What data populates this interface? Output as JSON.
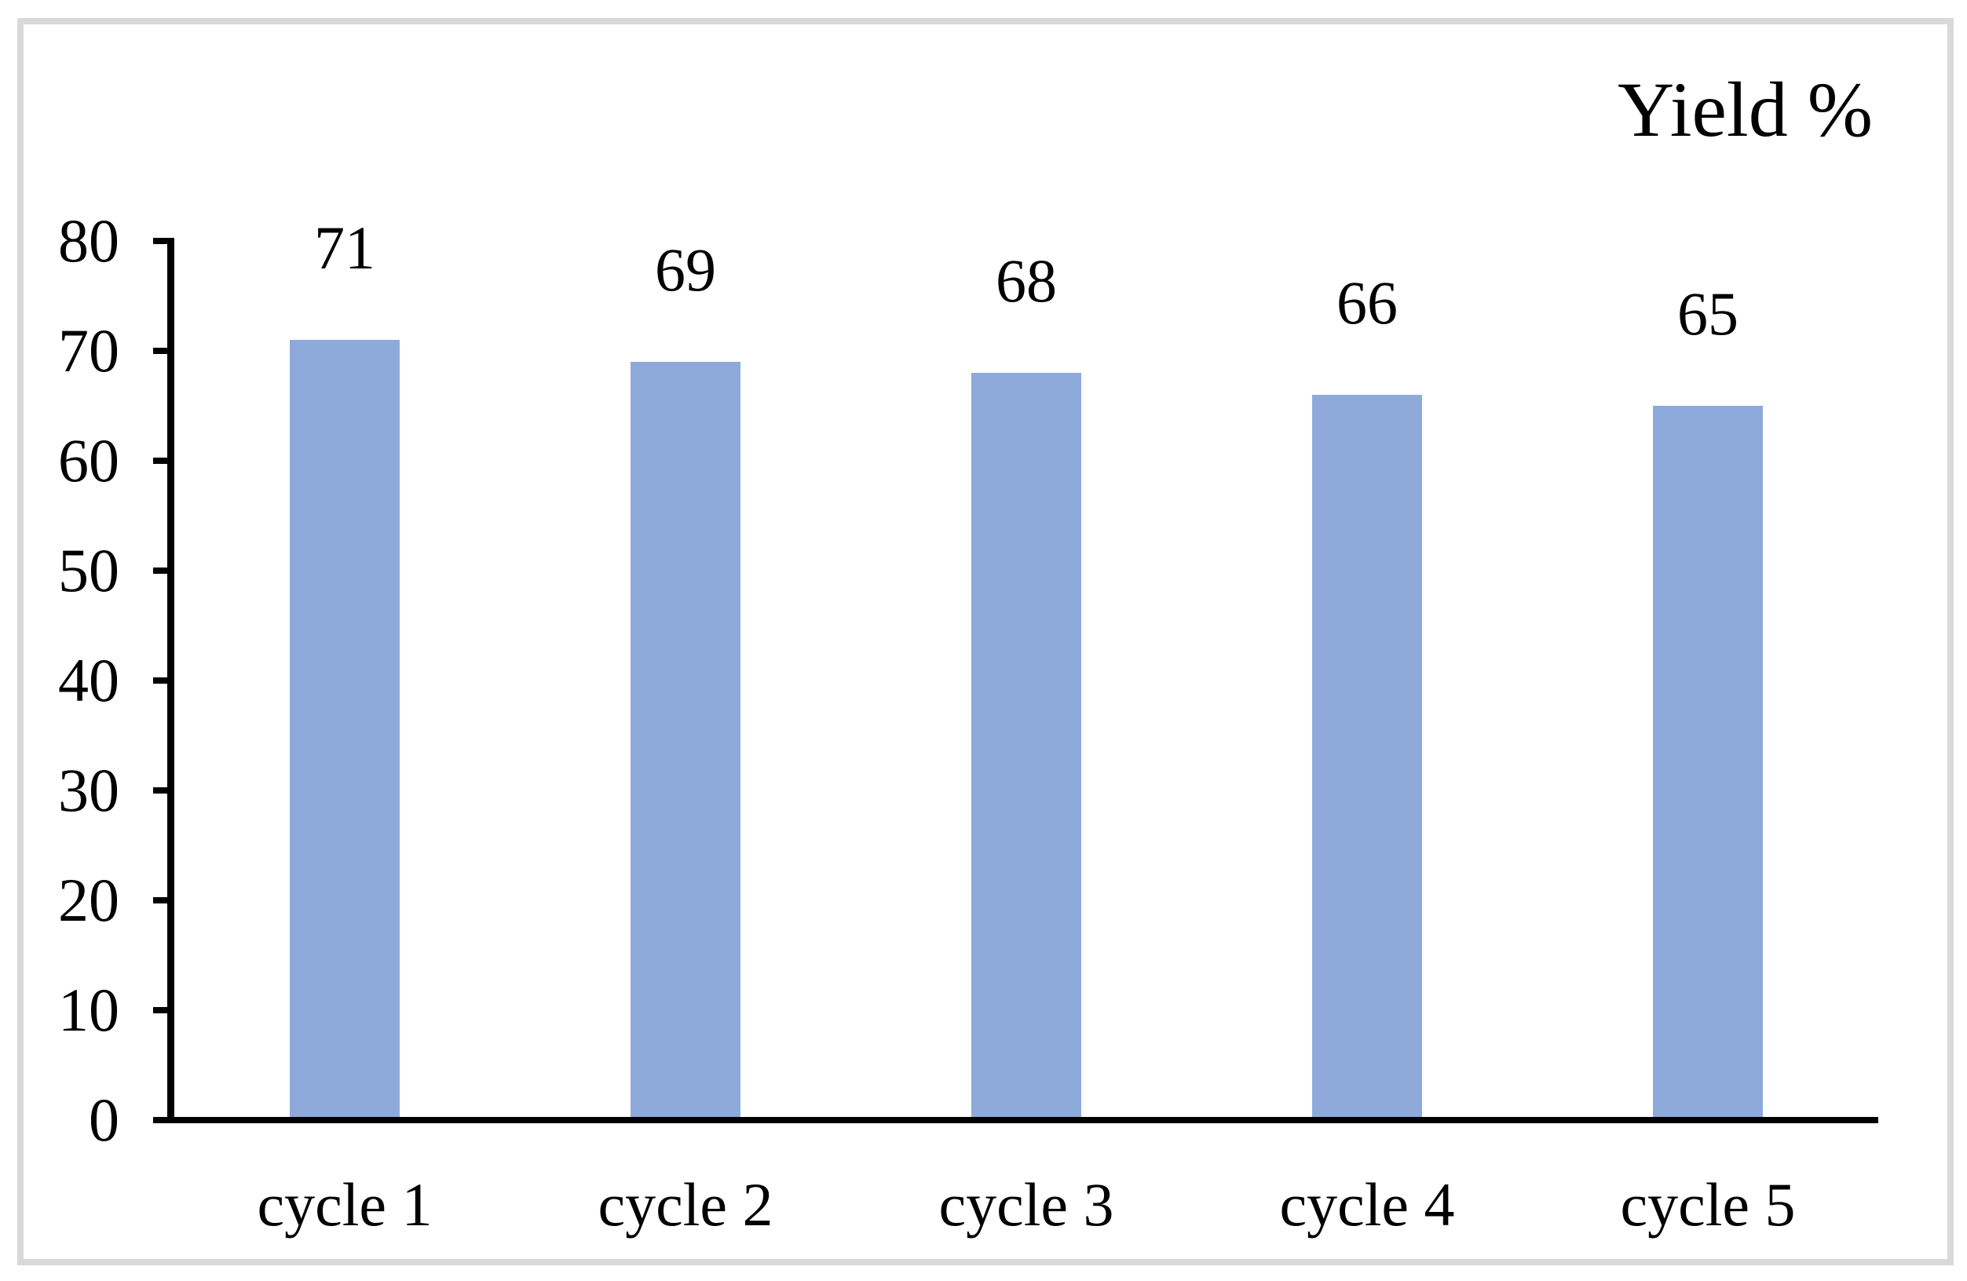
{
  "figure": {
    "title": "Yield %"
  },
  "chart_data": {
    "type": "bar",
    "title": "Yield %",
    "categories": [
      "cycle 1",
      "cycle 2",
      "cycle 3",
      "cycle 4",
      "cycle 5"
    ],
    "values": [
      71,
      69,
      68,
      66,
      65
    ],
    "xlabel": "",
    "ylabel": "",
    "ylim": [
      0,
      80
    ],
    "yticks": [
      0,
      10,
      20,
      30,
      40,
      50,
      60,
      70,
      80
    ],
    "grid": false,
    "legend_position": "none",
    "data_labels": true,
    "colors": {
      "bar_fill": "#8EAADB",
      "axis": "#000000",
      "text": "#000000",
      "frame_border": "#d9d9d9",
      "background": "#ffffff"
    }
  }
}
